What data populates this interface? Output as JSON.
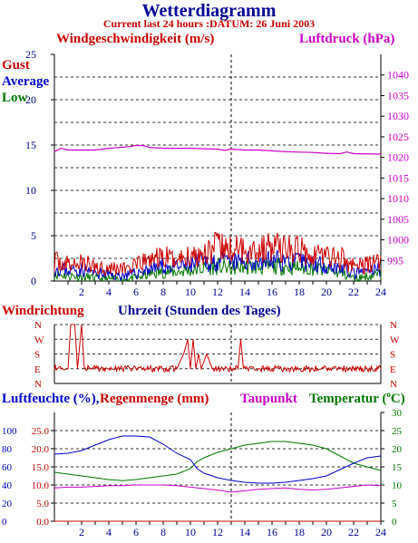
{
  "header": {
    "title": "Wetterdiagramm",
    "subtitle": "Current last 24 hours :DATUM: 26 Juni 2003"
  },
  "colors": {
    "navy": "#000099",
    "red": "#cc0000",
    "magenta": "#cc00cc",
    "green": "#007700",
    "blue": "#0000cc",
    "grid": "#333333",
    "axis": "#000000"
  },
  "panel_titles": {
    "wind_speed": "Windgeschwindigkeit (m/s)",
    "pressure": "Luftdruck (hPa)",
    "gust": "Gust",
    "average": "Average",
    "low": "Low",
    "wind_direction": "Windrichtung",
    "time": "Uhrzeit (Stunden des Tages)",
    "humidity": "Luftfeuchte (%),",
    "rain": "Regenmenge (mm)",
    "dewpoint": "Taupunkt",
    "temperature": "Temperatur (",
    "temperature_degree": "o",
    "temperature_unit": "C)"
  },
  "chart_data": [
    {
      "type": "line",
      "title": "Windgeschwindigkeit (m/s)",
      "x_ticks": [
        "2",
        "4",
        "6",
        "8",
        "10",
        "12",
        "14",
        "16",
        "18",
        "20",
        "22",
        "24"
      ],
      "x_range": [
        0,
        24
      ],
      "current_time_marker": 13,
      "y_left": {
        "label": "Windgeschwindigkeit (m/s)",
        "range": [
          0,
          25
        ],
        "ticks": [
          "0",
          "5",
          "10",
          "15",
          "20",
          "25"
        ]
      },
      "y_right": {
        "label": "Luftdruck (hPa)",
        "range": [
          990,
          1045
        ],
        "ticks": [
          "995",
          "1000",
          "1005",
          "1010",
          "1015",
          "1020",
          "1025",
          "1030",
          "1035",
          "1040"
        ]
      },
      "grid": true,
      "series": [
        {
          "name": "Gust",
          "color": "#cc0000",
          "axis": "left",
          "x": [
            0,
            1,
            2,
            3,
            4,
            5,
            6,
            7,
            8,
            9,
            10,
            11,
            12,
            13,
            14,
            15,
            16,
            17,
            18,
            19,
            20,
            21,
            22,
            23,
            24
          ],
          "y": [
            2.2,
            1.8,
            2.0,
            1.6,
            1.5,
            1.4,
            1.6,
            2.4,
            2.6,
            2.4,
            2.8,
            3.2,
            3.8,
            3.4,
            3.6,
            3.4,
            3.8,
            3.6,
            3.4,
            3.2,
            2.8,
            2.6,
            1.6,
            1.8,
            2.4
          ]
        },
        {
          "name": "Average",
          "color": "#0000cc",
          "axis": "left",
          "x": [
            0,
            1,
            2,
            3,
            4,
            5,
            6,
            7,
            8,
            9,
            10,
            11,
            12,
            13,
            14,
            15,
            16,
            17,
            18,
            19,
            20,
            21,
            22,
            23,
            24
          ],
          "y": [
            1.4,
            1.2,
            1.3,
            0.9,
            0.7,
            0.6,
            0.8,
            1.4,
            1.6,
            1.5,
            1.8,
            2.0,
            2.2,
            2.0,
            2.2,
            2.1,
            2.3,
            2.2,
            2.1,
            2.0,
            1.8,
            1.5,
            0.8,
            1.0,
            1.4
          ]
        },
        {
          "name": "Low",
          "color": "#007700",
          "axis": "left",
          "x": [
            0,
            1,
            2,
            3,
            4,
            5,
            6,
            7,
            8,
            9,
            10,
            11,
            12,
            13,
            14,
            15,
            16,
            17,
            18,
            19,
            20,
            21,
            22,
            23,
            24
          ],
          "y": [
            0.8,
            0.6,
            0.5,
            0.3,
            0.2,
            0.2,
            0.3,
            0.8,
            1.0,
            1.0,
            1.2,
            1.4,
            1.6,
            1.4,
            1.6,
            1.5,
            1.6,
            1.6,
            1.5,
            1.4,
            1.2,
            0.9,
            0.3,
            0.5,
            0.8
          ]
        },
        {
          "name": "Luftdruck",
          "color": "#cc00cc",
          "axis": "right",
          "x": [
            0,
            0.5,
            1,
            3,
            4,
            5.5,
            6,
            6.5,
            7,
            8,
            10,
            12,
            12.5,
            13,
            14,
            15,
            16,
            17,
            19,
            20,
            21,
            21.5,
            22,
            24
          ],
          "y": [
            1021.4,
            1022.2,
            1021.8,
            1021.8,
            1022.2,
            1022.6,
            1022.9,
            1022.9,
            1022.4,
            1022.2,
            1022.2,
            1022.0,
            1021.7,
            1022.0,
            1021.8,
            1021.8,
            1021.6,
            1021.4,
            1021.2,
            1021.0,
            1020.9,
            1021.3,
            1020.9,
            1020.8
          ]
        }
      ]
    },
    {
      "type": "line",
      "title": "Windrichtung",
      "x_range": [
        0,
        24
      ],
      "current_time_marker": 13,
      "y_categories": [
        "N",
        "W",
        "S",
        "E",
        "N"
      ],
      "grid": true,
      "series": [
        {
          "name": "Windrichtung",
          "color": "#cc0000",
          "x": [
            0,
            0.5,
            1,
            1.2,
            1.5,
            1.7,
            2,
            2.2,
            2.6,
            3,
            4,
            5,
            6,
            7,
            8,
            9,
            9.5,
            9.8,
            10,
            10.2,
            10.4,
            10.6,
            10.8,
            11.2,
            11.6,
            12,
            12.5,
            13,
            13.5,
            13.7,
            13.9,
            14.2,
            15,
            16,
            17,
            18,
            19,
            20,
            21,
            22,
            23,
            23.6,
            24
          ],
          "y": [
            "E",
            "E",
            "E",
            "N",
            "N",
            "E",
            "N",
            "E",
            "E",
            "E",
            "E",
            "E",
            "E",
            "E",
            "E",
            "E",
            "S",
            "W",
            "E",
            "W",
            "E",
            "S",
            "E",
            "S",
            "E",
            "E",
            "E",
            "E",
            "E",
            "W",
            "E",
            "E",
            "E",
            "E",
            "E",
            "E",
            "E",
            "E",
            "E",
            "E",
            "E",
            "E",
            "E"
          ]
        }
      ]
    },
    {
      "type": "line",
      "title": "Luftfeuchte / Regenmenge / Taupunkt / Temperatur",
      "x_ticks": [
        "2",
        "4",
        "6",
        "8",
        "10",
        "12",
        "14",
        "16",
        "18",
        "20",
        "22",
        "24"
      ],
      "x_range": [
        0,
        24
      ],
      "current_time_marker": 13,
      "y_left_outer": {
        "label": "Luftfeuchte (%)",
        "range": [
          0,
          120
        ],
        "ticks": [
          "0",
          "20",
          "40",
          "60",
          "80",
          "100"
        ]
      },
      "y_left_inner": {
        "label": "Regenmenge (mm)",
        "range": [
          0,
          30
        ],
        "ticks": [
          "0.0",
          "5.0",
          "10.0",
          "15.0",
          "20.0",
          "25.0"
        ]
      },
      "y_right": {
        "label": "Temperatur (°C)",
        "range": [
          0,
          30
        ],
        "ticks": [
          "0",
          "5",
          "10",
          "15",
          "20",
          "25",
          "30"
        ]
      },
      "grid": true,
      "series": [
        {
          "name": "Luftfeuchte",
          "color": "#0000cc",
          "axis": "left_outer",
          "x": [
            0,
            1,
            2,
            3,
            4,
            5,
            6,
            7,
            8,
            9,
            10,
            10.5,
            11,
            12,
            13,
            14,
            15,
            16,
            17,
            18,
            19,
            20,
            21,
            22,
            23,
            24
          ],
          "y": [
            74,
            75,
            78,
            84,
            90,
            94,
            94,
            93,
            85,
            75,
            68,
            58,
            53,
            48,
            45,
            43,
            42,
            42,
            43,
            45,
            47,
            50,
            57,
            64,
            70,
            72
          ]
        },
        {
          "name": "Temperatur",
          "color": "#007700",
          "axis": "right",
          "x": [
            0,
            1,
            2,
            3,
            4,
            5,
            6,
            7,
            8,
            9,
            10,
            10.5,
            11,
            12,
            13,
            14,
            15,
            16,
            17,
            18,
            19,
            20,
            21,
            22,
            23,
            24
          ],
          "y": [
            13.5,
            13.0,
            12.5,
            12.0,
            11.5,
            11.2,
            11.5,
            12.0,
            12.5,
            13.0,
            14.5,
            16.5,
            17.5,
            19.0,
            20.0,
            21.0,
            21.5,
            22.0,
            22.0,
            21.5,
            21.0,
            20.0,
            18.0,
            16.0,
            15.0,
            14.0
          ]
        },
        {
          "name": "Taupunkt",
          "color": "#cc00cc",
          "axis": "right",
          "x": [
            0,
            1,
            2,
            3,
            4,
            5,
            6,
            7,
            8,
            9,
            10,
            11,
            12,
            13,
            14,
            15,
            16,
            17,
            18,
            19,
            20,
            21,
            22,
            23,
            24
          ],
          "y": [
            9.2,
            9.4,
            9.4,
            9.6,
            9.8,
            9.8,
            10.0,
            10.0,
            10.0,
            9.8,
            9.4,
            9.0,
            8.6,
            8.0,
            8.4,
            8.8,
            9.0,
            9.2,
            8.8,
            8.6,
            8.8,
            9.2,
            9.6,
            10.0,
            9.8
          ]
        },
        {
          "name": "Regenmenge",
          "color": "#cc0000",
          "axis": "left_inner",
          "x": [
            0,
            24
          ],
          "y": [
            0.0,
            0.0
          ]
        }
      ]
    }
  ]
}
